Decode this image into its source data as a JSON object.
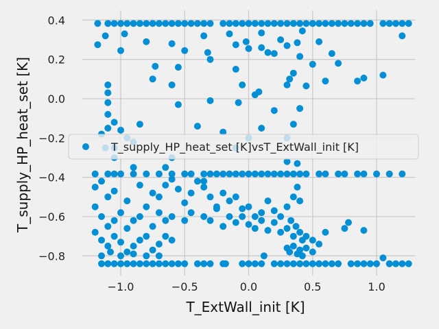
{
  "chart_data": {
    "type": "scatter",
    "title": "",
    "xlabel": "T_ExtWall_init [K]",
    "ylabel": "T_supply_HP_heat_set [K]",
    "xlim": [
      -1.3,
      1.3
    ],
    "ylim": [
      -0.9,
      0.45
    ],
    "xticks": [
      -1.0,
      -0.5,
      0.0,
      0.5,
      1.0
    ],
    "xtick_labels": [
      "−1.0",
      "−0.5",
      "0.0",
      "0.5",
      "1.0"
    ],
    "yticks": [
      -0.8,
      -0.6,
      -0.4,
      -0.2,
      0.0,
      0.2,
      0.4
    ],
    "ytick_labels": [
      "−0.8",
      "−0.6",
      "−0.4",
      "−0.2",
      "0.0",
      "0.2",
      "0.4"
    ],
    "grid": true,
    "legend_position": "center",
    "marker_color": "#008fd5",
    "series": [
      {
        "name": "T_supply_HP_heat_set [K]vsT_ExtWall_init [K]",
        "points": [
          [
            -1.18,
            0.383
          ],
          [
            -1.1,
            0.383
          ],
          [
            -1.05,
            0.383
          ],
          [
            -1.0,
            0.383
          ],
          [
            -0.95,
            0.383
          ],
          [
            -0.9,
            0.383
          ],
          [
            -0.85,
            0.383
          ],
          [
            -0.8,
            0.383
          ],
          [
            -0.75,
            0.383
          ],
          [
            -0.7,
            0.383
          ],
          [
            -0.65,
            0.383
          ],
          [
            -0.6,
            0.383
          ],
          [
            -0.55,
            0.383
          ],
          [
            -0.5,
            0.383
          ],
          [
            -0.45,
            0.383
          ],
          [
            -0.4,
            0.383
          ],
          [
            -0.35,
            0.383
          ],
          [
            -0.3,
            0.383
          ],
          [
            -0.2,
            0.383
          ],
          [
            -0.15,
            0.383
          ],
          [
            -0.1,
            0.383
          ],
          [
            -0.05,
            0.383
          ],
          [
            0.0,
            0.383
          ],
          [
            0.05,
            0.383
          ],
          [
            0.1,
            0.383
          ],
          [
            0.15,
            0.383
          ],
          [
            0.2,
            0.383
          ],
          [
            0.25,
            0.383
          ],
          [
            0.3,
            0.383
          ],
          [
            0.35,
            0.383
          ],
          [
            0.4,
            0.383
          ],
          [
            0.45,
            0.383
          ],
          [
            0.5,
            0.383
          ],
          [
            0.55,
            0.383
          ],
          [
            0.6,
            0.383
          ],
          [
            0.65,
            0.383
          ],
          [
            0.7,
            0.383
          ],
          [
            0.75,
            0.383
          ],
          [
            0.8,
            0.383
          ],
          [
            0.85,
            0.383
          ],
          [
            0.9,
            0.383
          ],
          [
            0.95,
            0.383
          ],
          [
            1.05,
            0.383
          ],
          [
            1.1,
            0.383
          ],
          [
            1.15,
            0.383
          ],
          [
            1.2,
            0.383
          ],
          [
            1.25,
            0.383
          ],
          [
            -1.18,
            0.275
          ],
          [
            -1.12,
            0.32
          ],
          [
            -1.0,
            0.245
          ],
          [
            -0.97,
            0.33
          ],
          [
            -0.8,
            0.29
          ],
          [
            -0.73,
            0.165
          ],
          [
            -0.6,
            0.28
          ],
          [
            -0.5,
            0.245
          ],
          [
            -0.35,
            0.32
          ],
          [
            -0.32,
            0.235
          ],
          [
            -0.3,
            0.2
          ],
          [
            -0.15,
            0.33
          ],
          [
            -0.1,
            0.275
          ],
          [
            -0.1,
            0.15
          ],
          [
            -0.05,
            0.07
          ],
          [
            -0.02,
            0.29
          ],
          [
            0.0,
            0.255
          ],
          [
            0.05,
            0.02
          ],
          [
            0.08,
            0.035
          ],
          [
            0.1,
            0.26
          ],
          [
            0.1,
            0.335
          ],
          [
            0.15,
            0.235
          ],
          [
            0.2,
            0.23
          ],
          [
            0.25,
            0.3
          ],
          [
            0.3,
            0.27
          ],
          [
            0.32,
            0.1
          ],
          [
            0.35,
            0.13
          ],
          [
            0.38,
            0.285
          ],
          [
            0.4,
            0.215
          ],
          [
            0.45,
            0.065
          ],
          [
            0.5,
            0.175
          ],
          [
            0.55,
            0.29
          ],
          [
            0.6,
            0.09
          ],
          [
            0.65,
            0.23
          ],
          [
            0.7,
            0.18
          ],
          [
            0.85,
            0.09
          ],
          [
            0.9,
            0.105
          ],
          [
            1.05,
            0.12
          ],
          [
            1.2,
            0.32
          ],
          [
            0.42,
            0.345
          ],
          [
            -0.55,
            0.16
          ],
          [
            -0.6,
            0.07
          ],
          [
            -0.75,
            0.1
          ],
          [
            -1.1,
            0.07
          ],
          [
            -1.1,
            0.03
          ],
          [
            -1.1,
            -0.02
          ],
          [
            -1.1,
            -0.08
          ],
          [
            -1.05,
            -0.12
          ],
          [
            -1.0,
            -0.16
          ],
          [
            -0.95,
            -0.2
          ],
          [
            -1.15,
            -0.18
          ],
          [
            -1.12,
            -0.25
          ],
          [
            -1.05,
            -0.3
          ],
          [
            -0.9,
            -0.22
          ],
          [
            -0.85,
            -0.13
          ],
          [
            -0.55,
            -0.03
          ],
          [
            -0.4,
            -0.14
          ],
          [
            -0.2,
            -0.17
          ],
          [
            -0.1,
            -0.25
          ],
          [
            0.0,
            -0.2
          ],
          [
            0.1,
            -0.15
          ],
          [
            0.2,
            -0.06
          ],
          [
            0.3,
            -0.2
          ],
          [
            0.35,
            -0.13
          ],
          [
            0.4,
            -0.05
          ],
          [
            0.3,
            0.07
          ],
          [
            -0.3,
            -0.01
          ],
          [
            -0.08,
            -0.02
          ],
          [
            -1.1,
            -0.15
          ],
          [
            -1.05,
            -0.25
          ],
          [
            -1.2,
            -0.383
          ],
          [
            -1.1,
            -0.383
          ],
          [
            -1.05,
            -0.383
          ],
          [
            -1.0,
            -0.383
          ],
          [
            -0.9,
            -0.383
          ],
          [
            -0.8,
            -0.383
          ],
          [
            -0.7,
            -0.383
          ],
          [
            -0.6,
            -0.383
          ],
          [
            -0.5,
            -0.383
          ],
          [
            -0.45,
            -0.383
          ],
          [
            -0.35,
            -0.383
          ],
          [
            -0.3,
            -0.383
          ],
          [
            -0.25,
            -0.383
          ],
          [
            -0.2,
            -0.383
          ],
          [
            -0.15,
            -0.383
          ],
          [
            -0.1,
            -0.383
          ],
          [
            -0.05,
            -0.383
          ],
          [
            0.0,
            -0.383
          ],
          [
            0.05,
            -0.383
          ],
          [
            0.1,
            -0.383
          ],
          [
            0.15,
            -0.383
          ],
          [
            0.2,
            -0.383
          ],
          [
            0.25,
            -0.383
          ],
          [
            0.3,
            -0.383
          ],
          [
            0.35,
            -0.383
          ],
          [
            0.4,
            -0.383
          ],
          [
            0.45,
            -0.383
          ],
          [
            0.55,
            -0.383
          ],
          [
            0.6,
            -0.383
          ],
          [
            0.7,
            -0.383
          ],
          [
            0.75,
            -0.383
          ],
          [
            0.85,
            -0.383
          ],
          [
            0.9,
            -0.383
          ],
          [
            1.0,
            -0.383
          ],
          [
            1.1,
            -0.383
          ],
          [
            1.2,
            -0.383
          ],
          [
            -1.2,
            -0.45
          ],
          [
            -1.15,
            -0.42
          ],
          [
            -1.1,
            -0.5
          ],
          [
            -1.05,
            -0.47
          ],
          [
            -0.95,
            -0.52
          ],
          [
            -0.85,
            -0.44
          ],
          [
            -0.8,
            -0.55
          ],
          [
            -0.75,
            -0.48
          ],
          [
            -0.7,
            -0.5
          ],
          [
            -0.65,
            -0.44
          ],
          [
            -0.6,
            -0.41
          ],
          [
            -0.55,
            -0.46
          ],
          [
            -0.5,
            -0.53
          ],
          [
            -0.45,
            -0.48
          ],
          [
            -0.4,
            -0.42
          ],
          [
            -0.35,
            -0.45
          ],
          [
            -0.3,
            -0.5
          ],
          [
            -0.25,
            -0.55
          ],
          [
            -0.2,
            -0.48
          ],
          [
            -0.15,
            -0.52
          ],
          [
            -0.1,
            -0.5
          ],
          [
            -0.05,
            -0.56
          ],
          [
            0.0,
            -0.55
          ],
          [
            0.05,
            -0.6
          ],
          [
            0.1,
            -0.58
          ],
          [
            0.15,
            -0.52
          ],
          [
            0.2,
            -0.57
          ],
          [
            0.25,
            -0.6
          ],
          [
            0.3,
            -0.55
          ],
          [
            0.35,
            -0.5
          ],
          [
            0.38,
            -0.45
          ],
          [
            0.4,
            -0.52
          ],
          [
            -0.65,
            -0.35
          ],
          [
            -0.9,
            -0.35
          ],
          [
            -0.6,
            -0.3
          ],
          [
            0.3,
            -0.32
          ],
          [
            0.38,
            -0.33
          ],
          [
            -0.35,
            -0.42
          ],
          [
            -1.2,
            -0.55
          ],
          [
            -1.15,
            -0.6
          ],
          [
            -1.1,
            -0.65
          ],
          [
            -1.05,
            -0.62
          ],
          [
            -1.0,
            -0.58
          ],
          [
            -0.95,
            -0.66
          ],
          [
            -0.9,
            -0.62
          ],
          [
            -0.85,
            -0.6
          ],
          [
            -0.75,
            -0.65
          ],
          [
            -0.7,
            -0.58
          ],
          [
            -0.65,
            -0.62
          ],
          [
            -0.6,
            -0.6
          ],
          [
            -0.5,
            -0.62
          ],
          [
            -0.45,
            -0.58
          ],
          [
            -0.35,
            -0.6
          ],
          [
            -0.3,
            -0.62
          ],
          [
            -0.25,
            -0.56
          ],
          [
            -0.2,
            -0.65
          ],
          [
            -0.15,
            -0.6
          ],
          [
            -0.1,
            -0.63
          ],
          [
            -0.05,
            -0.6
          ],
          [
            0.0,
            -0.64
          ],
          [
            0.05,
            -0.66
          ],
          [
            0.1,
            -0.62
          ],
          [
            0.15,
            -0.67
          ],
          [
            0.2,
            -0.63
          ],
          [
            0.25,
            -0.68
          ],
          [
            0.3,
            -0.66
          ],
          [
            0.33,
            -0.62
          ],
          [
            0.35,
            -0.7
          ],
          [
            0.37,
            -0.65
          ],
          [
            0.4,
            -0.68
          ],
          [
            0.42,
            -0.72
          ],
          [
            0.45,
            -0.7
          ],
          [
            0.5,
            -0.72
          ],
          [
            0.55,
            -0.74
          ],
          [
            0.6,
            -0.68
          ],
          [
            0.75,
            -0.66
          ],
          [
            0.9,
            -0.67
          ],
          [
            0.78,
            -0.63
          ],
          [
            -1.2,
            -0.68
          ],
          [
            -1.15,
            -0.72
          ],
          [
            -1.1,
            -0.75
          ],
          [
            -1.05,
            -0.7
          ],
          [
            -1.0,
            -0.73
          ],
          [
            -0.95,
            -0.78
          ],
          [
            -0.9,
            -0.75
          ],
          [
            -0.85,
            -0.72
          ],
          [
            -0.8,
            -0.7
          ],
          [
            -0.75,
            -0.77
          ],
          [
            -0.7,
            -0.74
          ],
          [
            -0.65,
            -0.7
          ],
          [
            -0.6,
            -0.72
          ],
          [
            0.3,
            -0.76
          ],
          [
            0.32,
            -0.78
          ],
          [
            0.35,
            -0.75
          ],
          [
            0.38,
            -0.79
          ],
          [
            0.4,
            -0.77
          ],
          [
            0.42,
            -0.8
          ],
          [
            0.45,
            -0.76
          ],
          [
            0.5,
            -0.78
          ],
          [
            0.12,
            -0.8
          ],
          [
            -1.15,
            -0.8
          ],
          [
            -1.08,
            -0.78
          ],
          [
            -1.0,
            -0.8
          ],
          [
            -0.9,
            -0.79
          ],
          [
            -0.8,
            -0.8
          ],
          [
            -0.7,
            -0.8
          ],
          [
            1.05,
            -0.81
          ],
          [
            -1.15,
            -0.84
          ],
          [
            -1.1,
            -0.84
          ],
          [
            -1.05,
            -0.84
          ],
          [
            -1.0,
            -0.84
          ],
          [
            -0.95,
            -0.84
          ],
          [
            -0.9,
            -0.84
          ],
          [
            -0.85,
            -0.84
          ],
          [
            -0.8,
            -0.84
          ],
          [
            -0.75,
            -0.84
          ],
          [
            -0.7,
            -0.84
          ],
          [
            -0.65,
            -0.84
          ],
          [
            -0.6,
            -0.84
          ],
          [
            -0.55,
            -0.84
          ],
          [
            -0.5,
            -0.84
          ],
          [
            -0.4,
            -0.84
          ],
          [
            -0.35,
            -0.84
          ],
          [
            -0.3,
            -0.84
          ],
          [
            -0.2,
            -0.84
          ],
          [
            -0.18,
            -0.84
          ],
          [
            -0.05,
            -0.84
          ],
          [
            0.0,
            -0.84
          ],
          [
            0.05,
            -0.84
          ],
          [
            0.1,
            -0.84
          ],
          [
            0.2,
            -0.84
          ],
          [
            0.25,
            -0.84
          ],
          [
            0.3,
            -0.84
          ],
          [
            0.35,
            -0.84
          ],
          [
            0.4,
            -0.84
          ],
          [
            0.45,
            -0.84
          ],
          [
            0.5,
            -0.84
          ],
          [
            0.55,
            -0.84
          ],
          [
            0.6,
            -0.84
          ],
          [
            0.65,
            -0.84
          ],
          [
            0.7,
            -0.84
          ],
          [
            0.8,
            -0.84
          ],
          [
            0.85,
            -0.84
          ],
          [
            0.9,
            -0.84
          ],
          [
            0.95,
            -0.84
          ],
          [
            1.0,
            -0.84
          ],
          [
            1.1,
            -0.84
          ],
          [
            1.15,
            -0.84
          ],
          [
            1.2,
            -0.84
          ],
          [
            1.25,
            -0.84
          ]
        ]
      }
    ]
  }
}
